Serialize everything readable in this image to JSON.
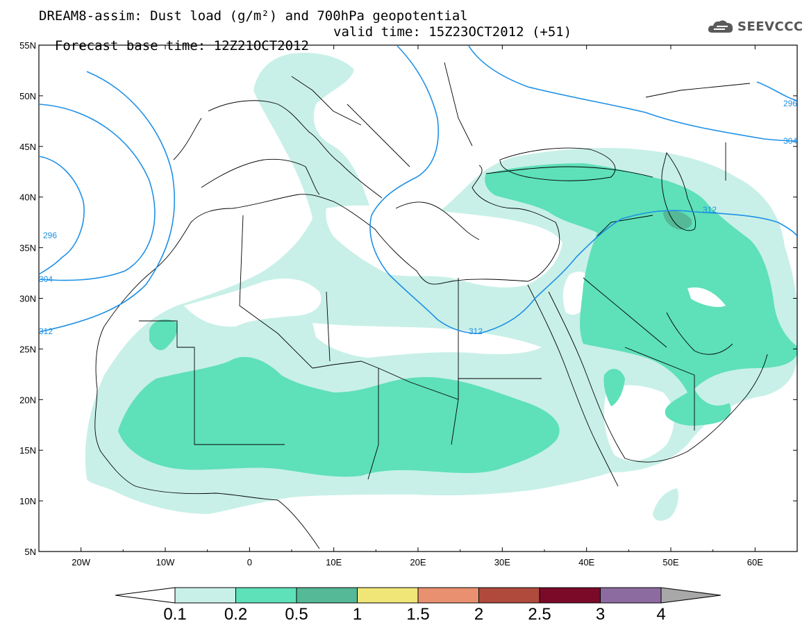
{
  "title": {
    "line1": "DREAM8-assim: Dust load (g/m²) and 700hPa geopotential",
    "line2_base": "Forecast base time: 12Z21OCT2012",
    "line2_valid": "valid time: 15Z23OCT2012 (+51)"
  },
  "logo": {
    "text": "SEEVCCC",
    "icon": "cloud-icon",
    "color": "#555555"
  },
  "map": {
    "lat_labels": [
      "55N",
      "50N",
      "45N",
      "40N",
      "35N",
      "30N",
      "25N",
      "20N",
      "15N",
      "10N",
      "5N"
    ],
    "lon_labels": [
      "20W",
      "10W",
      "0",
      "10E",
      "20E",
      "30E",
      "40E",
      "50E",
      "60E"
    ],
    "lat_range": [
      5,
      55
    ],
    "lon_range": [
      -25,
      65
    ],
    "contour_labels": [
      "296",
      "304",
      "312",
      "312",
      "312",
      "296",
      "304"
    ],
    "contour_color": "#1e90e6"
  },
  "legend": {
    "labels": [
      "0.1",
      "0.2",
      "0.5",
      "1",
      "1.5",
      "2",
      "2.5",
      "3",
      "4"
    ],
    "colors": [
      "#c8f0e8",
      "#5ee0b8",
      "#55b896",
      "#f0e678",
      "#e89070",
      "#b04a3c",
      "#7a0a28",
      "#8c6ca0"
    ],
    "under_color": "#ffffff",
    "over_color": "#a8a8a8"
  }
}
